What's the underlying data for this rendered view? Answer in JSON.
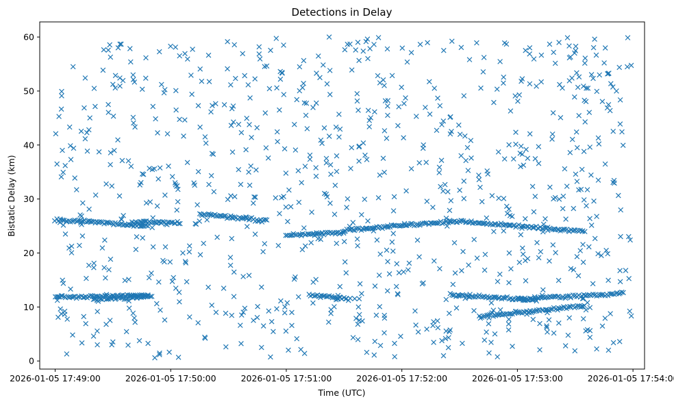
{
  "chart_data": {
    "type": "scatter",
    "title": "Detections in Delay",
    "xlabel": "Time (UTC)",
    "ylabel": "Bistatic Delay (km)",
    "x_ticks": [
      "2026-01-05 17:49:00",
      "2026-01-05 17:50:00",
      "2026-01-05 17:51:00",
      "2026-01-05 17:52:00",
      "2026-01-05 17:53:00",
      "2026-01-05 17:54:00"
    ],
    "y_ticks": [
      0,
      10,
      20,
      30,
      40,
      50,
      60
    ],
    "xlim": [
      "2026-01-05 17:48:52",
      "2026-01-05 17:54:06"
    ],
    "ylim": [
      -1.5,
      62.8
    ],
    "grid": false,
    "marker": "x",
    "color": "#1f77b4",
    "series": [
      {
        "tracks": [
          {
            "t_start": "2026-01-05 17:49:00",
            "t_end": "2026-01-05 17:49:48",
            "delay_start": 26.2,
            "delay_end": 25.0
          },
          {
            "t_start": "2026-01-05 17:49:40",
            "t_end": "2026-01-05 17:50:05",
            "delay_start": 25.8,
            "delay_end": 25.5
          },
          {
            "t_start": "2026-01-05 17:50:15",
            "t_end": "2026-01-05 17:50:50",
            "delay_start": 27.2,
            "delay_end": 26.0
          },
          {
            "t_start": "2026-01-05 17:51:00",
            "t_end": "2026-01-05 17:51:30",
            "delay_start": 23.2,
            "delay_end": 23.8
          },
          {
            "t_start": "2026-01-05 17:51:30",
            "t_end": "2026-01-05 17:52:25",
            "delay_start": 24.2,
            "delay_end": 25.8
          },
          {
            "t_start": "2026-01-05 17:52:25",
            "t_end": "2026-01-05 17:53:35",
            "delay_start": 26.0,
            "delay_end": 24.0
          },
          {
            "t_start": "2026-01-05 17:49:00",
            "t_end": "2026-01-05 17:49:48",
            "delay_start": 11.8,
            "delay_end": 12.2
          },
          {
            "t_start": "2026-01-05 17:49:20",
            "t_end": "2026-01-05 17:49:50",
            "delay_start": 11.3,
            "delay_end": 12.0
          },
          {
            "t_start": "2026-01-05 17:51:12",
            "t_end": "2026-01-05 17:51:33",
            "delay_start": 12.2,
            "delay_end": 11.5
          },
          {
            "t_start": "2026-01-05 17:52:25",
            "t_end": "2026-01-05 17:53:10",
            "delay_start": 12.3,
            "delay_end": 11.2
          },
          {
            "t_start": "2026-01-05 17:53:00",
            "t_end": "2026-01-05 17:53:55",
            "delay_start": 11.5,
            "delay_end": 12.5
          },
          {
            "t_start": "2026-01-05 17:52:40",
            "t_end": "2026-01-05 17:53:35",
            "delay_start": 8.2,
            "delay_end": 10.2
          }
        ],
        "background_clutter": {
          "count": 900,
          "t_start": "2026-01-05 17:49:00",
          "t_end": "2026-01-05 17:54:00",
          "delay_min": 0.5,
          "delay_max": 60
        }
      }
    ]
  }
}
